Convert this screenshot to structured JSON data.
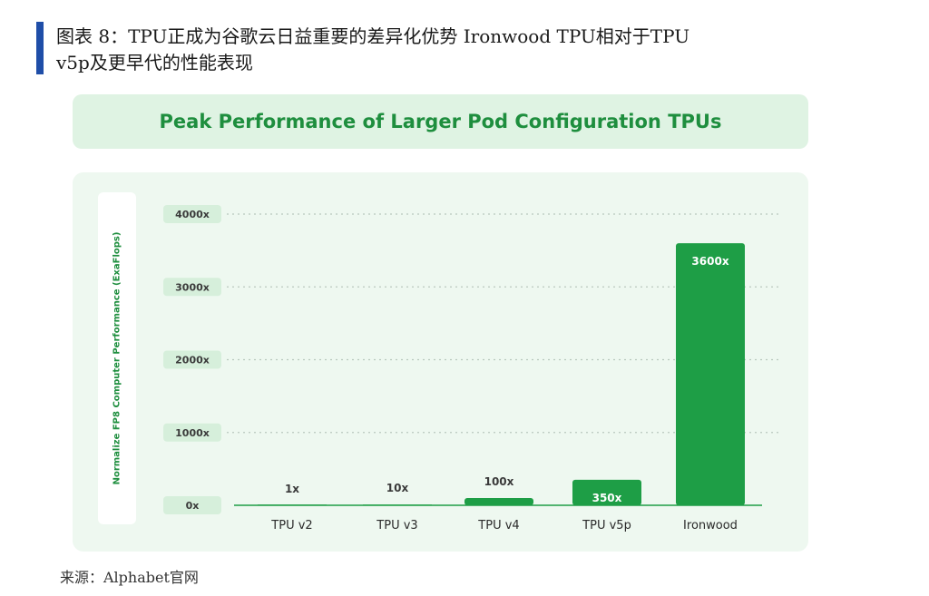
{
  "figure": {
    "caption_lines": [
      "图表 8：TPU正成为谷歌云日益重要的差异化优势 Ironwood TPU相对于TPU",
      "v5p及更早代的性能表现"
    ],
    "source": "来源：Alphabet官网"
  },
  "colors": {
    "accent_blue": "#1f4ea8",
    "bar_green": "#1e9e46",
    "title_green": "#1e8e3e",
    "panel_bg": "#eef8f0",
    "tick_box": "#d6efdb"
  },
  "chart_data": {
    "type": "bar",
    "title": "Peak Performance of Larger Pod Configuration TPUs",
    "xlabel": "",
    "ylabel": "Normalize FP8 Computer Performance (ExaFlops)",
    "categories": [
      "TPU v2",
      "TPU v3",
      "TPU v4",
      "TPU v5p",
      "Ironwood"
    ],
    "values": [
      1,
      10,
      100,
      350,
      3600
    ],
    "data_labels": [
      "1x",
      "10x",
      "100x",
      "350x",
      "3600x"
    ],
    "yticks": [
      0,
      1000,
      2000,
      3000,
      4000
    ],
    "ytick_labels": [
      "0x",
      "1000x",
      "2000x",
      "3000x",
      "4000x"
    ],
    "ylim": [
      0,
      4000
    ],
    "grid": true,
    "grid_style": "dotted horizontal",
    "legend": "none"
  }
}
